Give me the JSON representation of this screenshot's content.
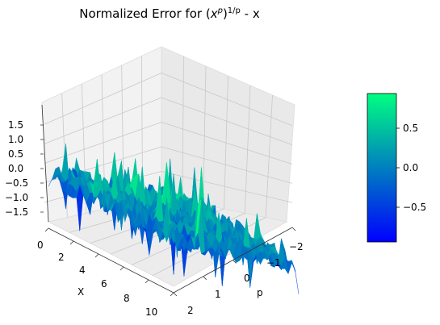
{
  "chart_data": {
    "type": "surface",
    "title_prefix": "Normalized Error for (",
    "title_base": "x",
    "title_sup1": "p",
    "title_close": ")",
    "title_sup2": "1/p",
    "title_suffix": " - x",
    "xlabel": "X",
    "ylabel": "p",
    "x_ticks": [
      "0",
      "2",
      "4",
      "6",
      "8",
      "10"
    ],
    "y_ticks": [
      "2",
      "1",
      "0",
      "−1",
      "−2"
    ],
    "z_ticks": [
      "1.5",
      "1.0",
      "0.5",
      "0.0",
      "−0.5",
      "−1.0",
      "−1.5"
    ],
    "colorbar_ticks": [
      "0.5",
      "0.0",
      "−0.5"
    ],
    "xlim": [
      0,
      10
    ],
    "ylim": [
      -2,
      2
    ],
    "zlim": [
      -1.8,
      1.8
    ],
    "colorbar_range": [
      -0.9,
      0.9
    ],
    "colormap": "winter",
    "colormap_low": "#0000ff",
    "colormap_high": "#00ff80",
    "grid": true
  }
}
